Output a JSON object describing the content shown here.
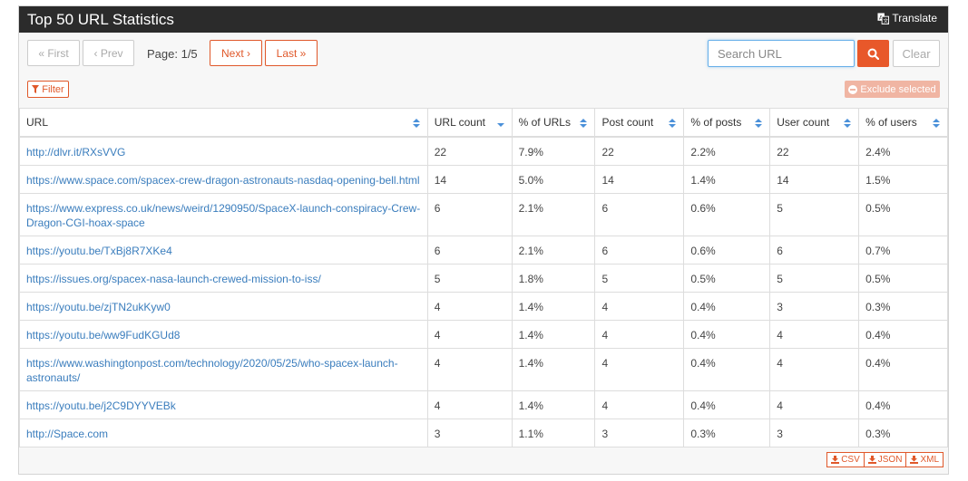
{
  "header": {
    "title": "Top 50 URL Statistics",
    "translate_label": "Translate"
  },
  "pagination": {
    "first_label": "« First",
    "prev_label": "‹ Prev",
    "page_info": "Page: 1/5",
    "next_label": "Next ›",
    "last_label": "Last »"
  },
  "search": {
    "placeholder": "Search URL",
    "value": "",
    "clear_label": "Clear"
  },
  "toolbar": {
    "filter_label": "Filter",
    "exclude_label": "Exclude selected"
  },
  "table": {
    "columns": [
      "URL",
      "URL count",
      "% of URLs",
      "Post count",
      "% of posts",
      "User count",
      "% of users"
    ],
    "rows": [
      {
        "url": "http://dlvr.it/RXsVVG",
        "url_count": "22",
        "pct_urls": "7.9%",
        "post_count": "22",
        "pct_posts": "2.2%",
        "user_count": "22",
        "pct_users": "2.4%"
      },
      {
        "url": "https://www.space.com/spacex-crew-dragon-astronauts-nasdaq-opening-bell.html",
        "url_count": "14",
        "pct_urls": "5.0%",
        "post_count": "14",
        "pct_posts": "1.4%",
        "user_count": "14",
        "pct_users": "1.5%"
      },
      {
        "url": "https://www.express.co.uk/news/weird/1290950/SpaceX-launch-conspiracy-Crew-Dragon-CGI-hoax-space",
        "url_count": "6",
        "pct_urls": "2.1%",
        "post_count": "6",
        "pct_posts": "0.6%",
        "user_count": "5",
        "pct_users": "0.5%"
      },
      {
        "url": "https://youtu.be/TxBj8R7XKe4",
        "url_count": "6",
        "pct_urls": "2.1%",
        "post_count": "6",
        "pct_posts": "0.6%",
        "user_count": "6",
        "pct_users": "0.7%"
      },
      {
        "url": "https://issues.org/spacex-nasa-launch-crewed-mission-to-iss/",
        "url_count": "5",
        "pct_urls": "1.8%",
        "post_count": "5",
        "pct_posts": "0.5%",
        "user_count": "5",
        "pct_users": "0.5%"
      },
      {
        "url": "https://youtu.be/zjTN2ukKyw0",
        "url_count": "4",
        "pct_urls": "1.4%",
        "post_count": "4",
        "pct_posts": "0.4%",
        "user_count": "3",
        "pct_users": "0.3%"
      },
      {
        "url": "https://youtu.be/ww9FudKGUd8",
        "url_count": "4",
        "pct_urls": "1.4%",
        "post_count": "4",
        "pct_posts": "0.4%",
        "user_count": "4",
        "pct_users": "0.4%"
      },
      {
        "url": "https://www.washingtonpost.com/technology/2020/05/25/who-spacex-launch-astronauts/",
        "url_count": "4",
        "pct_urls": "1.4%",
        "post_count": "4",
        "pct_posts": "0.4%",
        "user_count": "4",
        "pct_users": "0.4%"
      },
      {
        "url": "https://youtu.be/j2C9DYYVEBk",
        "url_count": "4",
        "pct_urls": "1.4%",
        "post_count": "4",
        "pct_posts": "0.4%",
        "user_count": "4",
        "pct_users": "0.4%"
      },
      {
        "url": "http://Space.com",
        "url_count": "3",
        "pct_urls": "1.1%",
        "post_count": "3",
        "pct_posts": "0.3%",
        "user_count": "3",
        "pct_users": "0.3%"
      }
    ]
  },
  "exports": {
    "csv_label": "CSV",
    "json_label": "JSON",
    "xml_label": "XML"
  },
  "colors": {
    "accent": "#e8582a",
    "link": "#3a7dbd",
    "header_bg": "#2b2b2b"
  },
  "icons": [
    "translate-icon",
    "search-icon",
    "filter-icon",
    "exclude-icon",
    "sort-icon",
    "download-icon"
  ]
}
